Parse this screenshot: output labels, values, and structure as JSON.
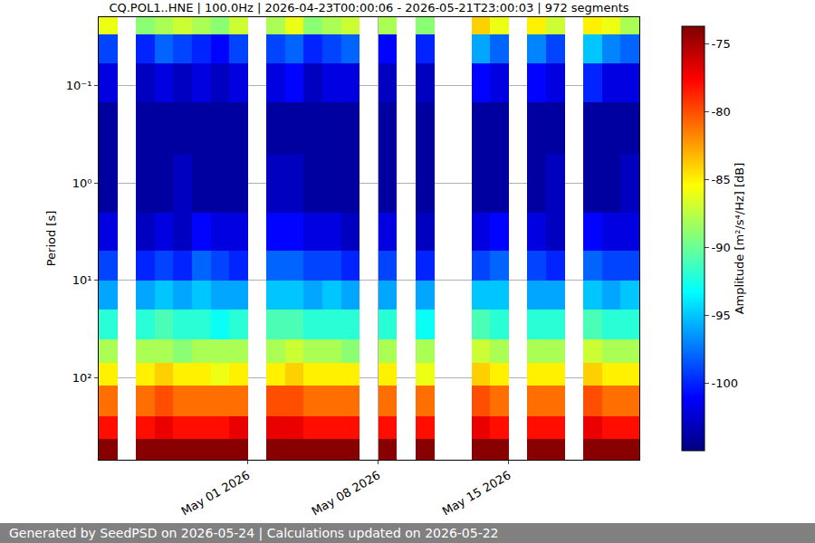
{
  "chart_data": {
    "type": "heatmap",
    "title": "CQ.POL1..HNE | 100.0Hz | 2026-04-23T00:00:06 - 2026-05-21T23:00:03 | 972 segments",
    "ylabel": "Period [s]",
    "colorbar_label": "Amplitude [m²/s⁴/Hz] [dB]",
    "footer": "Generated by SeedPSD on 2026-05-24 | Calculations updated on 2026-05-22",
    "log": "y",
    "grid": true,
    "color": "jet",
    "x": [
      "2026-04-23",
      "2026-04-24",
      "2026-04-25",
      "2026-04-26",
      "2026-04-27",
      "2026-04-28",
      "2026-04-29",
      "2026-04-30",
      "2026-05-01",
      "2026-05-02",
      "2026-05-03",
      "2026-05-04",
      "2026-05-05",
      "2026-05-06",
      "2026-05-07",
      "2026-05-08",
      "2026-05-09",
      "2026-05-10",
      "2026-05-11",
      "2026-05-12",
      "2026-05-13",
      "2026-05-14",
      "2026-05-15",
      "2026-05-16",
      "2026-05-17",
      "2026-05-18",
      "2026-05-19",
      "2026-05-20",
      "2026-05-21",
      "2026-05-22"
    ],
    "y": [
      0.02,
      0.03,
      0.06,
      0.15,
      0.5,
      2,
      5,
      10,
      20,
      40,
      70,
      120,
      250,
      420,
      690
    ],
    "cells": [
      [
        -86,
        null,
        -89,
        -88,
        -87,
        -88,
        -89,
        -87,
        null,
        -88,
        -86,
        -89,
        -88,
        -87,
        null,
        -88,
        null,
        -89,
        null,
        null,
        -84,
        -86,
        null,
        -85,
        -87,
        null,
        -85,
        -86,
        -88
      ],
      [
        -99,
        null,
        -100,
        -98,
        -99,
        -100,
        -101,
        -99,
        null,
        -99,
        -98,
        -100,
        -99,
        -98,
        null,
        -101,
        null,
        -100,
        null,
        null,
        -96,
        -98,
        null,
        -97,
        -99,
        null,
        -95,
        -97,
        -98
      ],
      [
        -102,
        null,
        -103,
        -102,
        -103,
        -102,
        -103,
        -102,
        null,
        -102,
        -101,
        -103,
        -102,
        -102,
        null,
        -103,
        null,
        -103,
        null,
        null,
        -101,
        -102,
        null,
        -101,
        -102,
        null,
        -100,
        -102,
        -102
      ],
      [
        -104,
        null,
        -104,
        -104,
        -104,
        -104,
        -104,
        -104,
        null,
        -104,
        -104,
        -104,
        -104,
        -104,
        null,
        -104,
        null,
        -104,
        null,
        null,
        -104,
        -104,
        null,
        -104,
        -104,
        null,
        -104,
        -104,
        -104
      ],
      [
        -104,
        null,
        -104,
        -104,
        -103,
        -104,
        -104,
        -104,
        null,
        -103,
        -103,
        -104,
        -104,
        -104,
        null,
        -104,
        null,
        -104,
        null,
        null,
        -104,
        -104,
        null,
        -104,
        -103,
        null,
        -104,
        -104,
        -103
      ],
      [
        -102,
        null,
        -103,
        -102,
        -103,
        -101,
        -102,
        -102,
        null,
        -101,
        -101,
        -102,
        -102,
        -103,
        null,
        -102,
        null,
        -103,
        null,
        null,
        -102,
        -101,
        null,
        -102,
        -103,
        null,
        -101,
        -102,
        -102
      ],
      [
        -99,
        null,
        -100,
        -99,
        -100,
        -98,
        -99,
        -100,
        null,
        -98,
        -98,
        -99,
        -99,
        -100,
        null,
        -99,
        null,
        -100,
        null,
        null,
        -99,
        -98,
        null,
        -99,
        -100,
        null,
        -98,
        -99,
        -99
      ],
      [
        -96,
        null,
        -96,
        -95,
        -96,
        -95,
        -96,
        -96,
        null,
        -95,
        -95,
        -96,
        -95,
        -96,
        null,
        -96,
        null,
        -96,
        null,
        null,
        -95,
        -95,
        null,
        -96,
        -96,
        null,
        -95,
        -96,
        -95
      ],
      [
        -92,
        null,
        -92,
        -91,
        -92,
        -92,
        -93,
        -92,
        null,
        -91,
        -91,
        -92,
        -92,
        -92,
        null,
        -92,
        null,
        -93,
        null,
        null,
        -91,
        -92,
        null,
        -92,
        -92,
        null,
        -91,
        -92,
        -92
      ],
      [
        -88,
        null,
        -88,
        -88,
        -89,
        -88,
        -88,
        -88,
        null,
        -88,
        -87,
        -88,
        -88,
        -89,
        null,
        -88,
        null,
        -88,
        null,
        null,
        -87,
        -88,
        null,
        -88,
        -88,
        null,
        -87,
        -88,
        -88
      ],
      [
        -85,
        null,
        -85,
        -84,
        -85,
        -85,
        -86,
        -85,
        null,
        -85,
        -84,
        -85,
        -85,
        -85,
        null,
        -85,
        null,
        -86,
        null,
        null,
        -84,
        -85,
        null,
        -85,
        -85,
        null,
        -84,
        -85,
        -85
      ],
      [
        -81,
        null,
        -81,
        -80,
        -81,
        -81,
        -81,
        -81,
        null,
        -80,
        -80,
        -81,
        -81,
        -81,
        null,
        -81,
        null,
        -81,
        null,
        null,
        -80,
        -81,
        null,
        -81,
        -81,
        null,
        -80,
        -81,
        -81
      ],
      [
        -78,
        null,
        -78,
        -77,
        -78,
        -78,
        -78,
        -77,
        null,
        -77,
        -77,
        -78,
        -78,
        -78,
        null,
        -78,
        null,
        -78,
        null,
        null,
        -77,
        -78,
        null,
        -78,
        -78,
        null,
        -77,
        -78,
        -78
      ],
      [
        -74,
        null,
        -74,
        -74,
        -74,
        -74,
        -74,
        -74,
        null,
        -74,
        -74,
        -74,
        -74,
        -74,
        null,
        -74,
        null,
        -74,
        null,
        null,
        -74,
        -74,
        null,
        -74,
        -74,
        null,
        -74,
        -74,
        -74
      ]
    ],
    "xlim": [
      "2026-04-23",
      "2026-05-22"
    ],
    "xticks": [
      {
        "value": "2026-05-01",
        "label": "May 01 2026"
      },
      {
        "value": "2026-05-08",
        "label": "May 08 2026"
      },
      {
        "value": "2026-05-15",
        "label": "May 15 2026"
      }
    ],
    "ylim": [
      690,
      0.02
    ],
    "yticks": [
      {
        "value": 0.1,
        "label": "10⁻¹"
      },
      {
        "value": 1,
        "label": "10⁰"
      },
      {
        "value": 10,
        "label": "10¹"
      },
      {
        "value": 100,
        "label": "10²"
      }
    ],
    "zlim": [
      -105,
      -73.7
    ],
    "zticks": [
      -100,
      -95,
      -90,
      -85,
      -80,
      -75
    ]
  }
}
